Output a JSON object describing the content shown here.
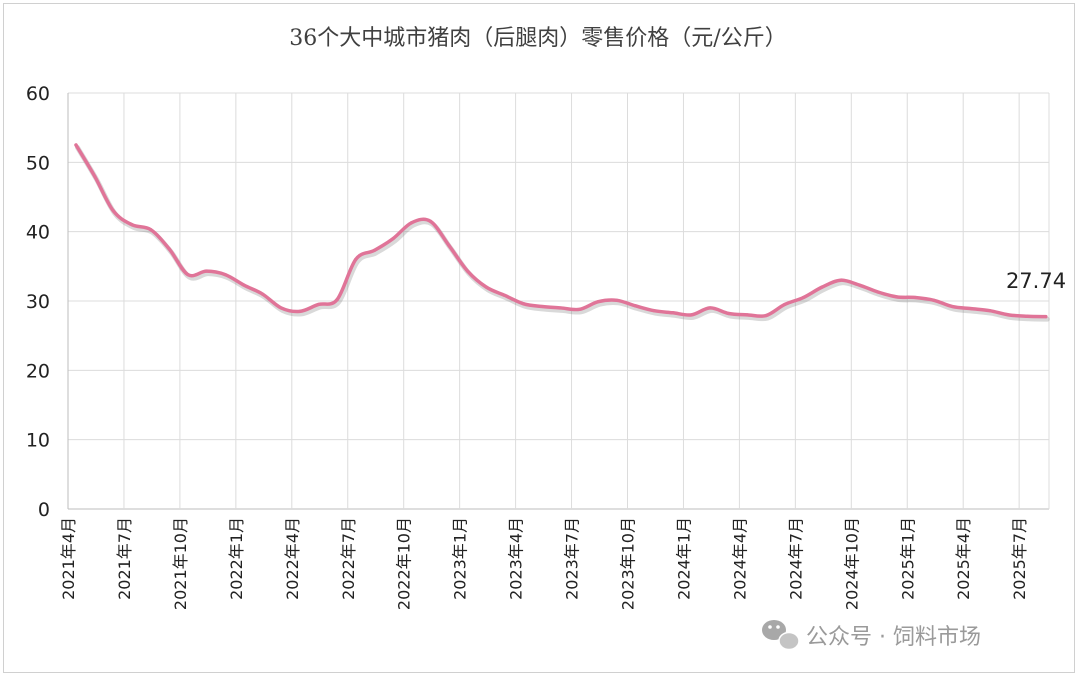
{
  "chart_data": {
    "type": "line",
    "title": "36个大中城市猪肉（后腿肉）零售价格（元/公斤）",
    "xlabel": "",
    "ylabel": "",
    "ylim": [
      0,
      60
    ],
    "yticks": [
      0,
      10,
      20,
      30,
      40,
      50,
      60
    ],
    "grid": true,
    "legend": "none",
    "x_tick_labels": [
      "2021年4月",
      "2021年7月",
      "2021年10月",
      "2022年1月",
      "2022年4月",
      "2022年7月",
      "2022年10月",
      "2023年1月",
      "2023年4月",
      "2023年7月",
      "2023年10月",
      "2024年1月",
      "2024年4月",
      "2024年7月",
      "2024年10月",
      "2025年1月",
      "2025年4月",
      "2025年7月"
    ],
    "series": [
      {
        "color": "#e07498",
        "x": [
          "2021-04",
          "2021-05",
          "2021-06",
          "2021-07",
          "2021-08",
          "2021-09",
          "2021-10",
          "2021-11",
          "2021-12",
          "2022-01",
          "2022-02",
          "2022-03",
          "2022-04",
          "2022-05",
          "2022-06",
          "2022-07",
          "2022-08",
          "2022-09",
          "2022-10",
          "2022-11",
          "2022-12",
          "2023-01",
          "2023-02",
          "2023-03",
          "2023-04",
          "2023-05",
          "2023-06",
          "2023-07",
          "2023-08",
          "2023-09",
          "2023-10",
          "2023-11",
          "2023-12",
          "2024-01",
          "2024-02",
          "2024-03",
          "2024-04",
          "2024-05",
          "2024-06",
          "2024-07",
          "2024-08",
          "2024-09",
          "2024-10",
          "2024-11",
          "2024-12",
          "2025-01",
          "2025-02",
          "2025-03",
          "2025-04",
          "2025-05",
          "2025-06",
          "2025-07",
          "2025-08"
        ],
        "values": [
          52.5,
          48.0,
          43.0,
          41.0,
          40.3,
          37.5,
          33.8,
          34.3,
          33.8,
          32.3,
          31.0,
          29.0,
          28.5,
          29.5,
          30.2,
          36.0,
          37.3,
          39.0,
          41.3,
          41.5,
          38.0,
          34.3,
          32.0,
          30.8,
          29.6,
          29.2,
          29.0,
          28.8,
          29.9,
          30.1,
          29.3,
          28.6,
          28.3,
          28.0,
          29.0,
          28.2,
          28.0,
          27.9,
          29.5,
          30.5,
          32.0,
          33.0,
          32.3,
          31.3,
          30.6,
          30.5,
          30.1,
          29.2,
          28.9,
          28.6,
          28.0,
          27.8,
          27.74
        ]
      }
    ],
    "end_label": "27.74"
  },
  "watermark": {
    "icon": "wechat-icon",
    "text": "公众号 · 饲料市场"
  }
}
